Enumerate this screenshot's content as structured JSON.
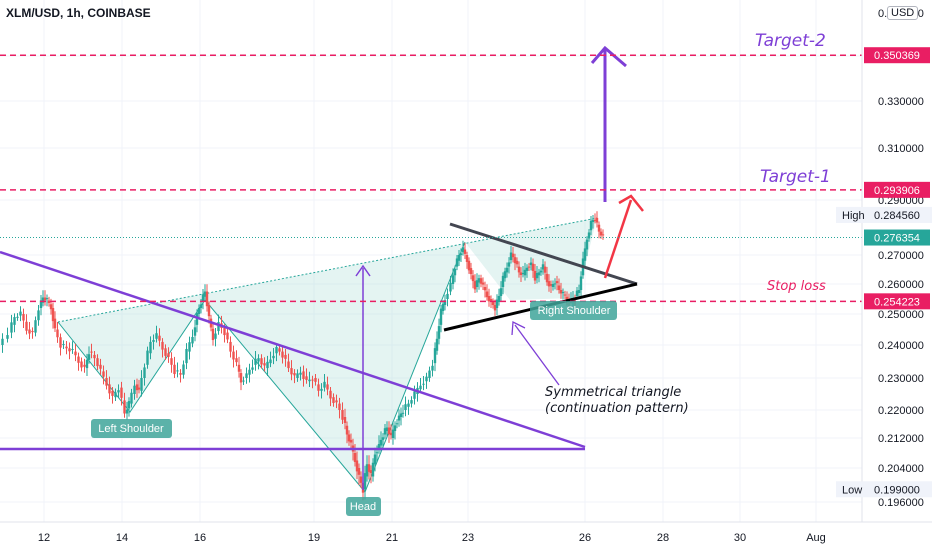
{
  "header": {
    "symbol_title": "XLM/USD, 1h, COINBASE",
    "currency": "USD"
  },
  "colors": {
    "up": "#26a69a",
    "down": "#ef5350",
    "target": "#e91e63",
    "purple": "#7e3fd6",
    "black": "#131722",
    "red": "#f23645",
    "tag_teal": "#3fa59a"
  },
  "chart_data": {
    "type": "candlestick",
    "x_ticks": [
      "12",
      "14",
      "16",
      "19",
      "21",
      "23",
      "26",
      "28",
      "30",
      "Aug"
    ],
    "y_ticks": [
      "0.350000",
      "0.330000",
      "0.310000",
      "0.290000",
      "0.270000",
      "0.260000",
      "0.250000",
      "0.240000",
      "0.230000",
      "0.220000",
      "0.212000",
      "0.204000",
      "0.196000"
    ],
    "y_tick_values": [
      0.35,
      0.33,
      0.31,
      0.29,
      0.27,
      0.26,
      0.25,
      0.24,
      0.23,
      0.22,
      0.212,
      0.204,
      0.196
    ],
    "top_tick_partial": "0.370000",
    "price_tags": [
      {
        "label": "Target-2 level",
        "value": "0.350369",
        "price": 0.350369,
        "style": "target"
      },
      {
        "label": "Target-1 level",
        "value": "0.293906",
        "price": 0.293906,
        "style": "target"
      },
      {
        "label": "High",
        "value": "0.284560",
        "price": 0.28456,
        "style": "hl"
      },
      {
        "label": "Last",
        "value": "0.276354",
        "price": 0.276354,
        "style": "last"
      },
      {
        "label": "Stop loss level",
        "value": "0.254223",
        "price": 0.254223,
        "style": "target"
      },
      {
        "label": "Low",
        "value": "0.199000",
        "price": 0.199,
        "style": "hl"
      }
    ],
    "high_label": "High",
    "low_label": "Low",
    "path_points": [
      [
        0,
        0.24
      ],
      [
        10,
        0.244
      ],
      [
        16,
        0.249
      ],
      [
        22,
        0.25
      ],
      [
        28,
        0.245
      ],
      [
        34,
        0.244
      ],
      [
        40,
        0.252
      ],
      [
        44,
        0.2555
      ],
      [
        48,
        0.2545
      ],
      [
        52,
        0.252
      ],
      [
        56,
        0.245
      ],
      [
        62,
        0.24
      ],
      [
        68,
        0.239
      ],
      [
        74,
        0.238
      ],
      [
        80,
        0.235
      ],
      [
        86,
        0.233
      ],
      [
        90,
        0.238
      ],
      [
        96,
        0.236
      ],
      [
        102,
        0.232
      ],
      [
        108,
        0.228
      ],
      [
        114,
        0.224
      ],
      [
        120,
        0.227
      ],
      [
        126,
        0.219
      ],
      [
        130,
        0.222
      ],
      [
        136,
        0.228
      ],
      [
        140,
        0.226
      ],
      [
        146,
        0.234
      ],
      [
        152,
        0.241
      ],
      [
        158,
        0.243
      ],
      [
        164,
        0.239
      ],
      [
        170,
        0.236
      ],
      [
        176,
        0.232
      ],
      [
        182,
        0.231
      ],
      [
        188,
        0.238
      ],
      [
        194,
        0.243
      ],
      [
        198,
        0.25
      ],
      [
        202,
        0.254
      ],
      [
        206,
        0.2575
      ],
      [
        210,
        0.2485
      ],
      [
        214,
        0.242
      ],
      [
        220,
        0.247
      ],
      [
        226,
        0.244
      ],
      [
        232,
        0.238
      ],
      [
        238,
        0.234
      ],
      [
        242,
        0.229
      ],
      [
        248,
        0.231
      ],
      [
        254,
        0.234
      ],
      [
        260,
        0.236
      ],
      [
        266,
        0.233
      ],
      [
        272,
        0.236
      ],
      [
        278,
        0.239
      ],
      [
        284,
        0.237
      ],
      [
        290,
        0.233
      ],
      [
        296,
        0.23
      ],
      [
        302,
        0.232
      ],
      [
        308,
        0.229
      ],
      [
        314,
        0.23
      ],
      [
        320,
        0.226
      ],
      [
        326,
        0.228
      ],
      [
        332,
        0.224
      ],
      [
        338,
        0.222
      ],
      [
        344,
        0.218
      ],
      [
        348,
        0.213
      ],
      [
        352,
        0.21
      ],
      [
        356,
        0.206
      ],
      [
        360,
        0.202
      ],
      [
        364,
        0.199
      ],
      [
        368,
        0.205
      ],
      [
        372,
        0.202
      ],
      [
        376,
        0.208
      ],
      [
        380,
        0.21
      ],
      [
        384,
        0.213
      ],
      [
        388,
        0.215
      ],
      [
        392,
        0.212
      ],
      [
        396,
        0.216
      ],
      [
        400,
        0.218
      ],
      [
        404,
        0.22
      ],
      [
        410,
        0.222
      ],
      [
        416,
        0.225
      ],
      [
        422,
        0.228
      ],
      [
        428,
        0.23
      ],
      [
        434,
        0.2345
      ],
      [
        438,
        0.242
      ],
      [
        442,
        0.251
      ],
      [
        446,
        0.255
      ],
      [
        452,
        0.26
      ],
      [
        456,
        0.266
      ],
      [
        460,
        0.27
      ],
      [
        464,
        0.272
      ],
      [
        468,
        0.268
      ],
      [
        472,
        0.263
      ],
      [
        476,
        0.259
      ],
      [
        480,
        0.262
      ],
      [
        484,
        0.259
      ],
      [
        488,
        0.256
      ],
      [
        492,
        0.254
      ],
      [
        496,
        0.252
      ],
      [
        500,
        0.256
      ],
      [
        504,
        0.262
      ],
      [
        508,
        0.266
      ],
      [
        512,
        0.2705
      ],
      [
        516,
        0.268
      ],
      [
        520,
        0.264
      ],
      [
        524,
        0.263
      ],
      [
        528,
        0.266
      ],
      [
        532,
        0.267
      ],
      [
        536,
        0.262
      ],
      [
        540,
        0.264
      ],
      [
        544,
        0.266
      ],
      [
        548,
        0.261
      ],
      [
        552,
        0.259
      ],
      [
        556,
        0.261
      ],
      [
        560,
        0.258
      ],
      [
        564,
        0.2565
      ],
      [
        568,
        0.255
      ],
      [
        572,
        0.2545
      ],
      [
        576,
        0.256
      ],
      [
        580,
        0.258
      ],
      [
        584,
        0.268
      ],
      [
        588,
        0.276
      ],
      [
        592,
        0.282
      ],
      [
        596,
        0.2835
      ],
      [
        600,
        0.2785
      ],
      [
        604,
        0.2765
      ]
    ]
  },
  "annotations": {
    "target2": "Target-2",
    "target1": "Target-1",
    "stop_loss": "Stop loss",
    "left_shoulder": "Left Shoulder",
    "head": "Head",
    "right_shoulder": "Right Shoulder",
    "triangle_line1": "Symmetrical triangle",
    "triangle_line2": "(continuation pattern)"
  }
}
